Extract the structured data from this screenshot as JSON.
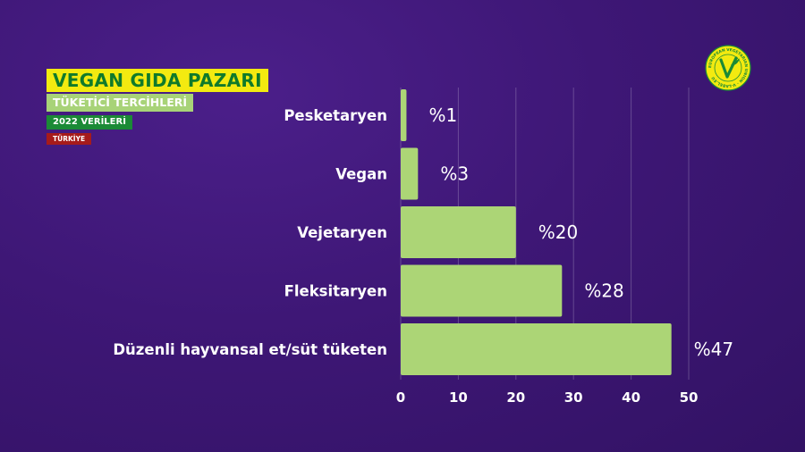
{
  "header": {
    "title": "VEGAN GIDA PAZARI",
    "subtitle": "TÜKETİCİ TERCİHLERİ",
    "year": "2022 VERİLERİ",
    "country": "TÜRKİYE"
  },
  "logo": {
    "icon": "v-label-icon",
    "ring_text": "EUROPEAN VEGETARIAN UNION · V-LABEL.EU"
  },
  "colors": {
    "bar": "#acd576",
    "title_bg": "#f3ea10",
    "title_text": "#0f7a2b",
    "subtitle_bg": "#a8d378",
    "year_bg": "#1b8a36",
    "country_bg": "#a61b1b"
  },
  "chart_data": {
    "type": "bar",
    "orientation": "horizontal",
    "categories": [
      "Pesketaryen",
      "Vegan",
      "Vejetaryen",
      "Fleksitaryen",
      "Düzenli hayvansal et/süt tüketen"
    ],
    "values": [
      1,
      3,
      20,
      28,
      47
    ],
    "value_labels": [
      "%1",
      "%3",
      "%20",
      "%28",
      "%47"
    ],
    "xlim": [
      0,
      50
    ],
    "xticks": [
      0,
      10,
      20,
      30,
      40,
      50
    ],
    "grid": "vertical"
  }
}
